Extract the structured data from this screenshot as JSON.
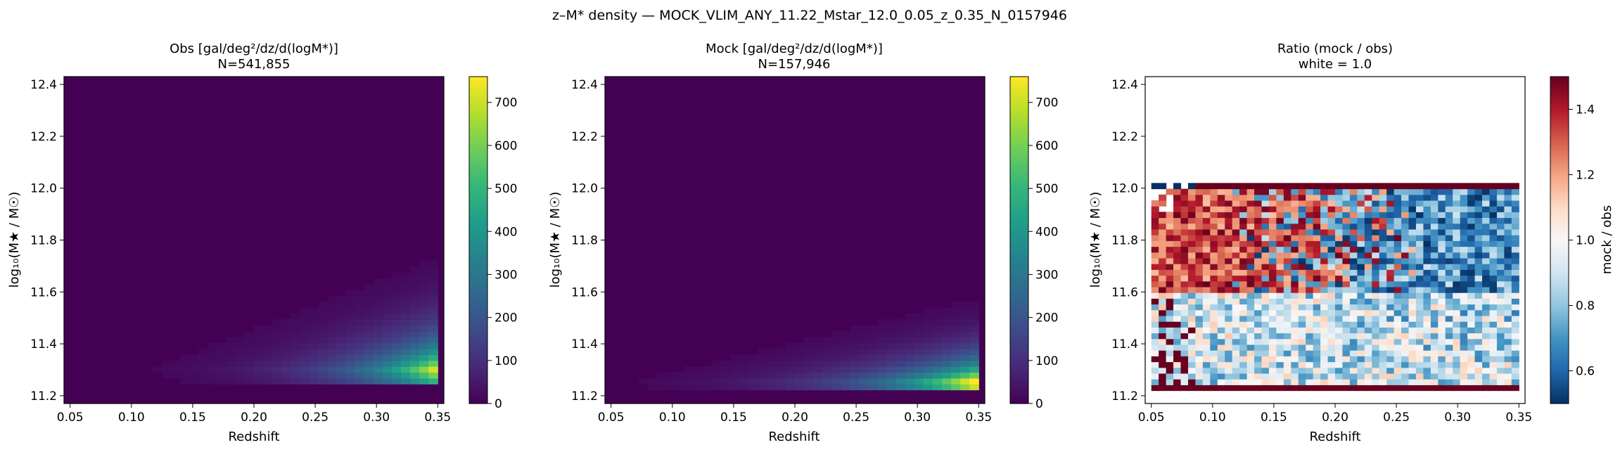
{
  "figure_title": "z–M* density — MOCK_VLIM_ANY_11.22_Mstar_12.0_0.05_z_0.35_N_0157946",
  "chart_data": [
    {
      "type": "heatmap",
      "title": "Obs  [gal/deg²/dz/d(logM*)]",
      "subtitle": "N=541,855",
      "xlabel": "Redshift",
      "ylabel": "log₁₀(M★ / M☉)",
      "xlim": [
        0.045,
        0.355
      ],
      "ylim": [
        11.17,
        12.43
      ],
      "xticks": [
        "0.05",
        "0.10",
        "0.15",
        "0.20",
        "0.25",
        "0.30",
        "0.35"
      ],
      "yticks": [
        "11.2",
        "11.4",
        "11.6",
        "11.8",
        "12.0",
        "12.2",
        "12.4"
      ],
      "grid": false,
      "colormap": "viridis",
      "color_range": [
        0,
        760
      ],
      "colorbar_ticks": [
        "0",
        "100",
        "200",
        "300",
        "400",
        "500",
        "600",
        "700"
      ],
      "x_bins": [
        0.05,
        0.35,
        40
      ],
      "y_bins": [
        11.2,
        12.4,
        53
      ],
      "density_model": {
        "peak_value": 770,
        "peak_z": 0.35,
        "peak_logM": 11.3,
        "z_scale": 0.06,
        "logM_scale": 0.11,
        "min_logM": 11.25,
        "max_logM": 12.05
      }
    },
    {
      "type": "heatmap",
      "title": "Mock  [gal/deg²/dz/d(logM*)]",
      "subtitle": "N=157,946",
      "xlabel": "Redshift",
      "ylabel": "log₁₀(M★ / M☉)",
      "xlim": [
        0.045,
        0.355
      ],
      "ylim": [
        11.17,
        12.43
      ],
      "xticks": [
        "0.05",
        "0.10",
        "0.15",
        "0.20",
        "0.25",
        "0.30",
        "0.35"
      ],
      "yticks": [
        "11.2",
        "11.4",
        "11.6",
        "11.8",
        "12.0",
        "12.2",
        "12.4"
      ],
      "grid": false,
      "colormap": "viridis",
      "color_range": [
        0,
        760
      ],
      "colorbar_ticks": [
        "0",
        "100",
        "200",
        "300",
        "400",
        "500",
        "600",
        "700"
      ],
      "x_bins": [
        0.05,
        0.35,
        40
      ],
      "y_bins": [
        11.2,
        12.4,
        53
      ],
      "density_model": {
        "peak_value": 900,
        "peak_z": 0.35,
        "peak_logM": 11.25,
        "z_scale": 0.07,
        "logM_scale": 0.08,
        "min_logM": 11.22,
        "max_logM": 12.05
      }
    },
    {
      "type": "heatmap",
      "title": "Ratio (mock / obs)",
      "subtitle": "white = 1.0",
      "xlabel": "Redshift",
      "ylabel": "log₁₀(M★ / M☉)",
      "xlim": [
        0.045,
        0.355
      ],
      "ylim": [
        11.17,
        12.43
      ],
      "xticks": [
        "0.05",
        "0.10",
        "0.15",
        "0.20",
        "0.25",
        "0.30",
        "0.35"
      ],
      "yticks": [
        "11.2",
        "11.4",
        "11.6",
        "11.8",
        "12.0",
        "12.2",
        "12.4"
      ],
      "grid": false,
      "colormap": "RdBu_r",
      "color_range": [
        0.5,
        1.5
      ],
      "colorbar_label": "mock / obs",
      "colorbar_ticks": [
        "0.6",
        "0.8",
        "1.0",
        "1.2",
        "1.4"
      ],
      "x_bins": [
        0.05,
        0.35,
        50
      ],
      "y_bins": [
        11.22,
        12.02,
        36
      ],
      "ratio_model": {
        "bottom_row_value": 1.5,
        "top_row_value": 1.5,
        "low_z_high_mass_value": 1.5,
        "high_z_high_mass_value": 0.5,
        "low_mass_value": 0.9
      }
    }
  ]
}
